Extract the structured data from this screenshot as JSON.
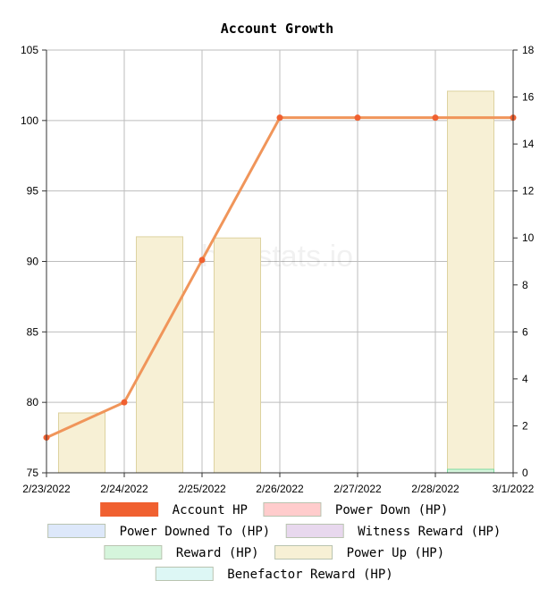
{
  "title": "Account Growth",
  "watermark": "hivestats.io",
  "chart_data": {
    "type": "line+bar",
    "title": "Account Growth",
    "x": [
      "2/23/2022",
      "2/24/2022",
      "2/25/2022",
      "2/26/2022",
      "2/27/2022",
      "2/28/2022",
      "3/1/2022"
    ],
    "y_left_ticks": [
      75,
      80,
      85,
      90,
      95,
      100,
      105
    ],
    "y_right_ticks": [
      0,
      2,
      4,
      6,
      8,
      10,
      12,
      14,
      16,
      18
    ],
    "ylim_left": [
      75,
      105
    ],
    "ylim_right": [
      0,
      18
    ],
    "grid": true,
    "legend_position": "bottom",
    "series": [
      {
        "name": "Account HP",
        "kind": "line",
        "axis": "left",
        "color": "#f06030",
        "values": [
          77.5,
          80.0,
          90.1,
          100.2,
          100.2,
          100.2,
          100.2
        ]
      },
      {
        "name": "Power Down (HP)",
        "kind": "bar",
        "axis": "right",
        "color": "#ffcccc",
        "values": [
          0,
          0,
          0,
          0,
          0,
          0,
          0
        ]
      },
      {
        "name": "Power Downed To (HP)",
        "kind": "bar",
        "axis": "right",
        "color": "#dde8fa",
        "values": [
          0,
          0,
          0,
          0,
          0,
          0,
          0
        ]
      },
      {
        "name": "Witness Reward (HP)",
        "kind": "bar",
        "axis": "right",
        "color": "#e8d8ee",
        "values": [
          0,
          0,
          0,
          0,
          0,
          0,
          0
        ]
      },
      {
        "name": "Reward (HP)",
        "kind": "bar",
        "axis": "right",
        "color": "#d5f5dc",
        "values": [
          0,
          0,
          0,
          0,
          0,
          0.15,
          0
        ]
      },
      {
        "name": "Power Up (HP)",
        "kind": "bar",
        "axis": "right",
        "color": "#f7f0d5",
        "values": [
          2.55,
          10.05,
          10.0,
          0,
          0,
          16.25,
          0
        ]
      },
      {
        "name": "Benefactor Reward (HP)",
        "kind": "bar",
        "axis": "right",
        "color": "#ddf7f5",
        "values": [
          0,
          0,
          0,
          0,
          0,
          0,
          0
        ]
      }
    ]
  }
}
